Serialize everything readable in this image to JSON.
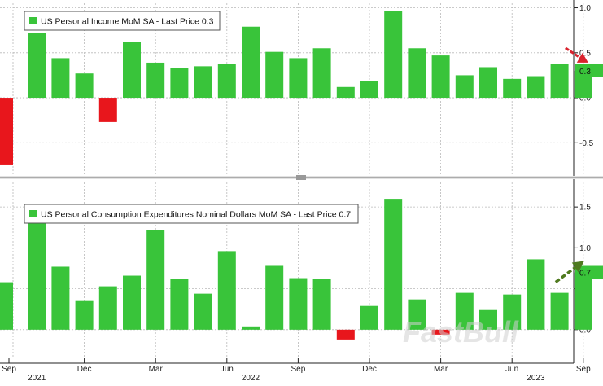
{
  "chart_data": [
    {
      "type": "bar",
      "title": "US Personal Income MoM SA - Last Price 0.3",
      "last_price_label": "0.3",
      "ylim": [
        -0.85,
        1.05
      ],
      "yticks": [
        1.0,
        0.5,
        0.0,
        -0.5
      ],
      "ytick_labels": [
        "1.0",
        "0.5",
        "0.0",
        "-0.5"
      ],
      "grid": true,
      "legend": "top-left",
      "annotation": "red arrow pointing down at last bar",
      "categories": [
        "Sep 2021",
        "Oct 2021",
        "Nov 2021",
        "Dec 2021",
        "Jan 2022",
        "Feb 2022",
        "Mar 2022",
        "Apr 2022",
        "May 2022",
        "Jun 2022",
        "Jul 2022",
        "Aug 2022",
        "Sep 2022",
        "Oct 2022",
        "Nov 2022",
        "Dec 2022",
        "Jan 2023",
        "Feb 2023",
        "Mar 2023",
        "Apr 2023",
        "May 2023",
        "Jun 2023",
        "Jul 2023",
        "Aug 2023",
        "Sep 2023"
      ],
      "values": [
        -0.75,
        0.72,
        0.44,
        0.27,
        -0.27,
        0.62,
        0.39,
        0.33,
        0.35,
        0.38,
        0.79,
        0.51,
        0.44,
        0.55,
        0.12,
        0.19,
        0.96,
        0.55,
        0.47,
        0.25,
        0.34,
        0.21,
        0.24,
        0.38,
        0.3
      ]
    },
    {
      "type": "bar",
      "title": "US Personal Consumption Expenditures Nominal Dollars MoM SA - Last Price 0.7",
      "last_price_label": "0.7",
      "ylim": [
        -0.35,
        1.8
      ],
      "yticks": [
        1.5,
        1.0,
        0.5,
        0.0
      ],
      "ytick_labels": [
        "1.5",
        "1.0",
        "0.5",
        "0.0"
      ],
      "grid": true,
      "legend": "top-left",
      "annotation": "green arrow pointing up at last bar",
      "categories": [
        "Sep 2021",
        "Oct 2021",
        "Nov 2021",
        "Dec 2021",
        "Jan 2022",
        "Feb 2022",
        "Mar 2022",
        "Apr 2022",
        "May 2022",
        "Jun 2022",
        "Jul 2022",
        "Aug 2022",
        "Sep 2022",
        "Oct 2022",
        "Nov 2022",
        "Dec 2022",
        "Jan 2023",
        "Feb 2023",
        "Mar 2023",
        "Apr 2023",
        "May 2023",
        "Jun 2023",
        "Jul 2023",
        "Aug 2023",
        "Sep 2023"
      ],
      "values": [
        0.58,
        1.32,
        0.77,
        0.35,
        0.53,
        0.66,
        1.22,
        0.62,
        0.44,
        0.96,
        0.04,
        0.78,
        0.63,
        0.62,
        -0.12,
        0.29,
        1.6,
        0.37,
        -0.06,
        0.45,
        0.24,
        0.43,
        0.86,
        0.45,
        0.7
      ]
    }
  ],
  "x_axis": {
    "month_ticks": [
      {
        "index": 0,
        "label": "Sep"
      },
      {
        "index": 3,
        "label": "Dec"
      },
      {
        "index": 6,
        "label": "Mar"
      },
      {
        "index": 9,
        "label": "Jun"
      },
      {
        "index": 12,
        "label": "Sep"
      },
      {
        "index": 15,
        "label": "Dec"
      },
      {
        "index": 18,
        "label": "Mar"
      },
      {
        "index": 21,
        "label": "Jun"
      },
      {
        "index": 24,
        "label": "Sep"
      }
    ],
    "year_labels": [
      {
        "index": 1,
        "label": "2021"
      },
      {
        "index": 10,
        "label": "2022"
      },
      {
        "index": 22,
        "label": "2023"
      }
    ]
  },
  "colors": {
    "positive": "#39c43a",
    "negative": "#e8161c",
    "grid": "#b9b9b9",
    "axis": "#222222",
    "last_price_box": "#39c43a",
    "arrow_down": "#d9232e",
    "arrow_up": "#4f7a1f"
  },
  "watermark": "FastBull"
}
